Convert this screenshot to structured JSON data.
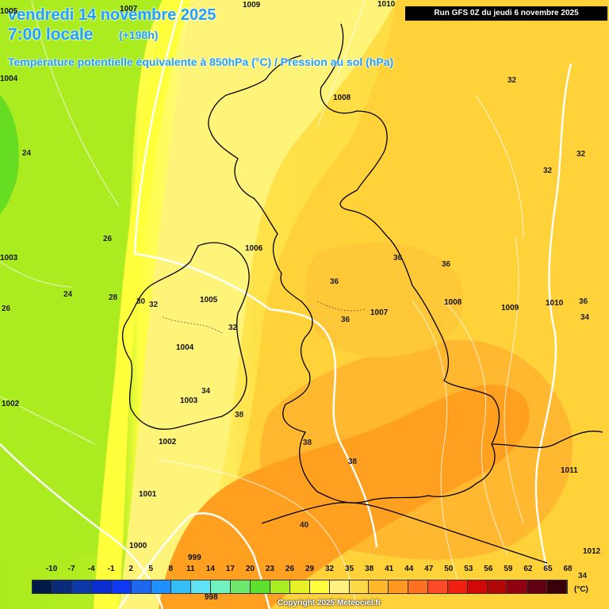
{
  "header": {
    "date": "vendredi 14 novembre 2025",
    "time": "7:00 locale",
    "offset": "(+198h)",
    "parameter": "Température potentielle équivalente à 850hPa (°C) / Pression au sol (hPa)",
    "run": "Run GFS 0Z du jeudi 6 novembre 2025"
  },
  "temperature_labels": [
    "24",
    "26",
    "24",
    "28",
    "30",
    "32",
    "32",
    "34",
    "38",
    "38",
    "38",
    "40",
    "32",
    "32",
    "32",
    "36",
    "36",
    "36",
    "36",
    "34",
    "34",
    "26",
    "36"
  ],
  "pressure_labels": [
    "1009",
    "1010",
    "1007",
    "1008",
    "1006",
    "1005",
    "1004",
    "1003",
    "1002",
    "1001",
    "1000",
    "999",
    "998",
    "1007",
    "1008",
    "1009",
    "1010",
    "1011",
    "1012",
    "1002",
    "1003",
    "1004",
    "1005"
  ],
  "legend": {
    "unit": "(°C)",
    "ticks": [
      "-10",
      "-7",
      "-4",
      "-1",
      "2",
      "5",
      "8",
      "11",
      "14",
      "17",
      "20",
      "23",
      "26",
      "29",
      "32",
      "35",
      "38",
      "41",
      "44",
      "47",
      "50",
      "53",
      "56",
      "59",
      "62",
      "65",
      "68"
    ],
    "colors": [
      "#001a4a",
      "#0a2a7a",
      "#0b3aa8",
      "#0a2ed0",
      "#0f3af5",
      "#1e68f0",
      "#1e90ff",
      "#35bdf5",
      "#5fe3f5",
      "#72f2c0",
      "#6ee86c",
      "#5ee02e",
      "#a8ec24",
      "#e6f228",
      "#ffff40",
      "#fff080",
      "#ffd84a",
      "#ffb82a",
      "#ff9820",
      "#ff7020",
      "#ff4a28",
      "#f02010",
      "#d00808",
      "#b00808",
      "#900010",
      "#600010",
      "#3a0008"
    ]
  },
  "copyright": "Copyright 2025 Meteociel.fr"
}
